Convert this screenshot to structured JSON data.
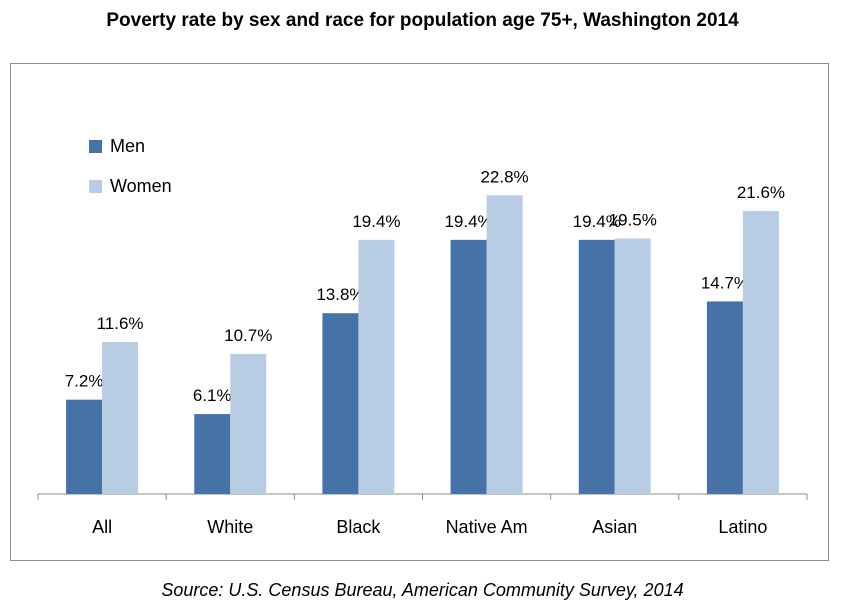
{
  "chart_data": {
    "type": "bar",
    "title": "Poverty rate by sex and race for population age 75+, Washington 2014",
    "source": "Source: U.S. Census Bureau, American Community Survey, 2014",
    "categories": [
      "All",
      "White",
      "Black",
      "Native Am",
      "Asian",
      "Latino"
    ],
    "series": [
      {
        "name": "Men",
        "color": "#4572a7",
        "values": [
          7.2,
          6.1,
          13.8,
          19.4,
          19.4,
          14.7
        ],
        "labels": [
          "7.2%",
          "6.1%",
          "13.8%",
          "19.4%",
          "19.4%",
          "14.7%"
        ]
      },
      {
        "name": "Women",
        "color": "#b8cce4",
        "values": [
          11.6,
          10.7,
          19.4,
          22.8,
          19.5,
          21.6
        ],
        "labels": [
          "11.6%",
          "10.7%",
          "19.4%",
          "22.8%",
          "19.5%",
          "21.6%"
        ]
      }
    ],
    "ylim": [
      0,
      27.5
    ],
    "grid": false,
    "legend_position": "top-left"
  }
}
